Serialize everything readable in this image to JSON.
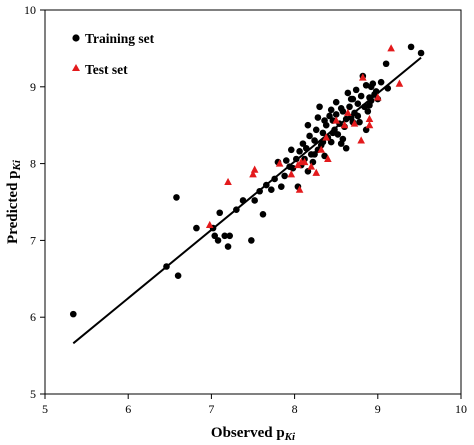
{
  "chart_data": {
    "type": "scatter",
    "xlabel": {
      "main": "Observed p",
      "sub": "Ki"
    },
    "ylabel": {
      "main": "Predicted p",
      "sub": "Ki"
    },
    "xlim": [
      5,
      10
    ],
    "ylim": [
      5,
      10
    ],
    "xticks": [
      "5",
      "6",
      "7",
      "8",
      "9",
      "10"
    ],
    "yticks": [
      "5",
      "6",
      "7",
      "8",
      "9",
      "10"
    ],
    "grid": false,
    "legend_position": "top-left",
    "colors": {
      "training": "#000000",
      "test": "#e31a1c",
      "line": "#000000"
    },
    "series": [
      {
        "name": "Training set",
        "marker": "circle",
        "points": [
          [
            5.34,
            6.04
          ],
          [
            6.46,
            6.66
          ],
          [
            6.58,
            7.56
          ],
          [
            6.6,
            6.54
          ],
          [
            6.82,
            7.16
          ],
          [
            7.02,
            7.16
          ],
          [
            7.04,
            7.06
          ],
          [
            7.08,
            7.0
          ],
          [
            7.1,
            7.36
          ],
          [
            7.16,
            7.06
          ],
          [
            7.2,
            6.92
          ],
          [
            7.22,
            7.06
          ],
          [
            7.3,
            7.4
          ],
          [
            7.38,
            7.52
          ],
          [
            7.48,
            7.0
          ],
          [
            7.52,
            7.52
          ],
          [
            7.58,
            7.64
          ],
          [
            7.62,
            7.34
          ],
          [
            7.66,
            7.72
          ],
          [
            7.72,
            7.66
          ],
          [
            7.76,
            7.8
          ],
          [
            7.8,
            8.02
          ],
          [
            7.84,
            7.7
          ],
          [
            7.88,
            7.84
          ],
          [
            7.9,
            8.04
          ],
          [
            7.94,
            7.96
          ],
          [
            7.96,
            8.18
          ],
          [
            7.98,
            7.94
          ],
          [
            8.02,
            8.06
          ],
          [
            8.04,
            7.7
          ],
          [
            8.06,
            8.16
          ],
          [
            8.08,
            7.98
          ],
          [
            8.1,
            8.26
          ],
          [
            8.12,
            8.06
          ],
          [
            8.14,
            8.2
          ],
          [
            8.16,
            7.9
          ],
          [
            8.18,
            8.36
          ],
          [
            8.2,
            8.12
          ],
          [
            8.22,
            8.02
          ],
          [
            8.24,
            8.3
          ],
          [
            8.26,
            8.44
          ],
          [
            8.28,
            8.18
          ],
          [
            8.3,
            8.74
          ],
          [
            8.32,
            8.24
          ],
          [
            8.34,
            8.4
          ],
          [
            8.36,
            8.1
          ],
          [
            8.38,
            8.5
          ],
          [
            8.4,
            8.34
          ],
          [
            8.42,
            8.62
          ],
          [
            8.44,
            8.28
          ],
          [
            8.46,
            8.56
          ],
          [
            8.48,
            8.44
          ],
          [
            8.5,
            8.8
          ],
          [
            8.52,
            8.38
          ],
          [
            8.54,
            8.52
          ],
          [
            8.56,
            8.26
          ],
          [
            8.58,
            8.68
          ],
          [
            8.6,
            8.48
          ],
          [
            8.62,
            8.58
          ],
          [
            8.64,
            8.92
          ],
          [
            8.66,
            8.74
          ],
          [
            8.68,
            8.6
          ],
          [
            8.7,
            8.84
          ],
          [
            8.72,
            8.66
          ],
          [
            8.74,
            8.96
          ],
          [
            8.76,
            8.78
          ],
          [
            8.78,
            8.54
          ],
          [
            8.8,
            8.88
          ],
          [
            8.82,
            9.14
          ],
          [
            8.84,
            8.74
          ],
          [
            8.86,
            9.02
          ],
          [
            8.88,
            8.68
          ],
          [
            8.9,
            8.86
          ],
          [
            8.92,
            8.82
          ],
          [
            8.94,
            9.04
          ],
          [
            8.96,
            8.9
          ],
          [
            9.0,
            8.84
          ],
          [
            9.04,
            9.06
          ],
          [
            9.1,
            9.3
          ],
          [
            9.12,
            8.98
          ],
          [
            9.4,
            9.52
          ],
          [
            9.52,
            9.44
          ],
          [
            8.28,
            8.6
          ],
          [
            8.44,
            8.7
          ],
          [
            8.36,
            8.56
          ],
          [
            8.58,
            8.32
          ],
          [
            8.7,
            8.54
          ],
          [
            8.5,
            8.64
          ],
          [
            8.86,
            8.44
          ],
          [
            8.62,
            8.2
          ],
          [
            8.16,
            8.5
          ],
          [
            8.24,
            8.12
          ],
          [
            8.34,
            8.28
          ],
          [
            8.46,
            8.4
          ],
          [
            8.56,
            8.72
          ],
          [
            8.68,
            8.84
          ],
          [
            8.76,
            8.62
          ],
          [
            8.9,
            8.76
          ],
          [
            8.92,
            9.0
          ],
          [
            8.98,
            8.94
          ]
        ]
      },
      {
        "name": "Test set",
        "marker": "triangle",
        "points": [
          [
            6.98,
            7.2
          ],
          [
            7.2,
            7.76
          ],
          [
            7.5,
            7.86
          ],
          [
            7.52,
            7.92
          ],
          [
            7.82,
            8.0
          ],
          [
            7.96,
            7.86
          ],
          [
            8.04,
            7.98
          ],
          [
            8.06,
            7.66
          ],
          [
            8.08,
            8.02
          ],
          [
            8.12,
            8.02
          ],
          [
            8.2,
            7.96
          ],
          [
            8.26,
            7.88
          ],
          [
            8.32,
            8.18
          ],
          [
            8.38,
            8.34
          ],
          [
            8.4,
            8.06
          ],
          [
            8.5,
            8.56
          ],
          [
            8.64,
            8.66
          ],
          [
            8.72,
            8.52
          ],
          [
            8.82,
            9.12
          ],
          [
            8.9,
            8.5
          ],
          [
            8.9,
            8.58
          ],
          [
            9.0,
            8.86
          ],
          [
            9.16,
            9.5
          ],
          [
            9.26,
            9.04
          ],
          [
            8.6,
            8.5
          ],
          [
            8.8,
            8.3
          ]
        ]
      }
    ],
    "trendline": {
      "x": [
        5.34,
        9.52
      ],
      "y": [
        5.66,
        9.38
      ]
    }
  }
}
